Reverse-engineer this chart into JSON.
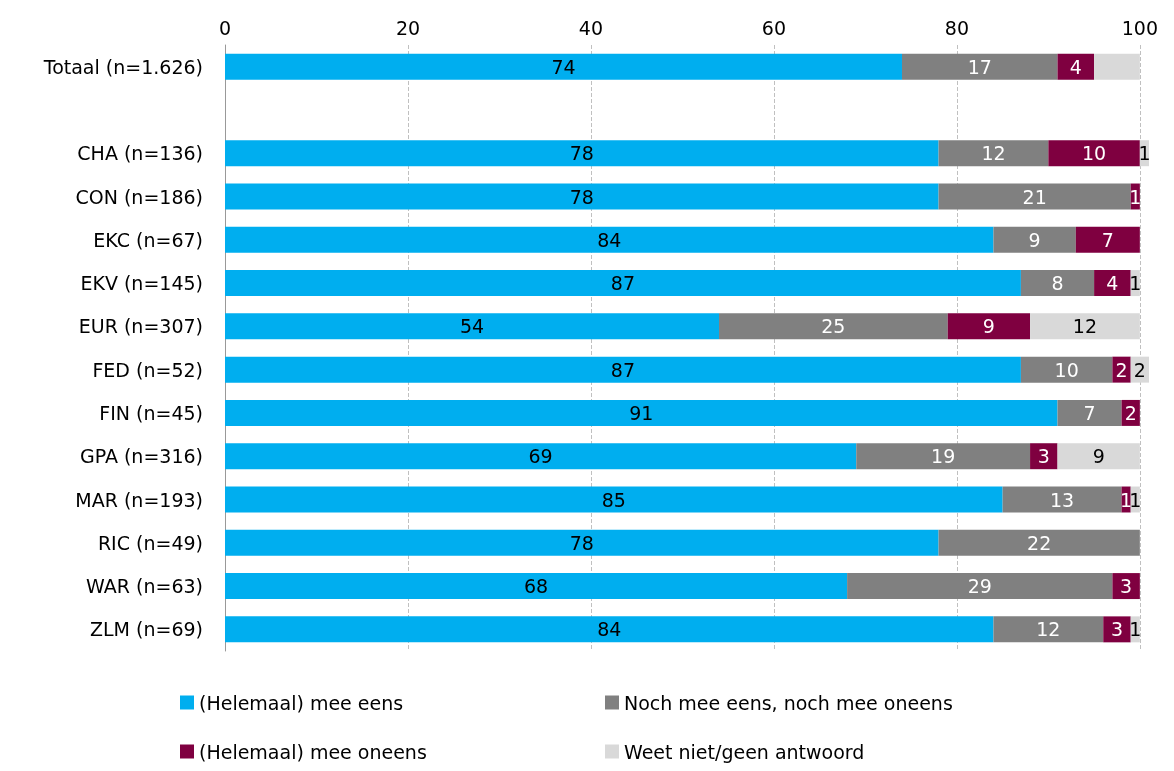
{
  "chart_data": {
    "type": "bar",
    "orientation": "horizontal",
    "stacked": true,
    "categories": [
      "Totaal (n=1.626)",
      null,
      "CHA (n=136)",
      "CON (n=186)",
      "EKC (n=67)",
      "EKV (n=145)",
      "EUR (n=307)",
      "FED (n=52)",
      "FIN (n=45)",
      "GPA (n=316)",
      "MAR (n=193)",
      "RIC (n=49)",
      "WAR (n=63)",
      "ZLM (n=69)"
    ],
    "series": [
      {
        "name": "(Helemaal) mee eens",
        "color": "#00aeef",
        "values": [
          74,
          null,
          78,
          78,
          84,
          87,
          54,
          87,
          91,
          69,
          85,
          78,
          68,
          84
        ],
        "value_labels": [
          "74",
          null,
          "78",
          "78",
          "84",
          "87",
          "54",
          "87",
          "91",
          "69",
          "85",
          "78",
          "68",
          "84"
        ]
      },
      {
        "name": "Noch mee eens, noch mee oneens",
        "color": "#808080",
        "values": [
          17,
          null,
          12,
          21,
          9,
          8,
          25,
          10,
          7,
          19,
          13,
          22,
          29,
          12
        ],
        "value_labels": [
          "17",
          null,
          "12",
          "21",
          "9",
          "8",
          "25",
          "10",
          "7",
          "19",
          "13",
          "22",
          "29",
          "12"
        ]
      },
      {
        "name": "(Helemaal) mee oneens",
        "color": "#7f0040",
        "values": [
          4,
          null,
          10,
          1,
          7,
          4,
          9,
          2,
          2,
          3,
          1,
          null,
          3,
          3
        ],
        "value_labels": [
          "4",
          null,
          "10",
          "1",
          "7",
          "4",
          "9",
          "2",
          "2",
          "3",
          "1",
          null,
          "3",
          "3"
        ]
      },
      {
        "name": "Weet niet/geen antwoord",
        "color": "#d9d9d9",
        "values": [
          5,
          null,
          1,
          null,
          null,
          1,
          12,
          2,
          null,
          9,
          1,
          null,
          null,
          1
        ],
        "value_labels": [
          null,
          null,
          "1",
          null,
          null,
          "1",
          "12",
          "2",
          null,
          "9",
          "1",
          null,
          null,
          "1"
        ]
      }
    ],
    "xlim": [
      0,
      101
    ],
    "xticks": [
      0,
      20,
      40,
      60,
      80,
      100
    ],
    "grid": "x",
    "legend": "bottom"
  }
}
